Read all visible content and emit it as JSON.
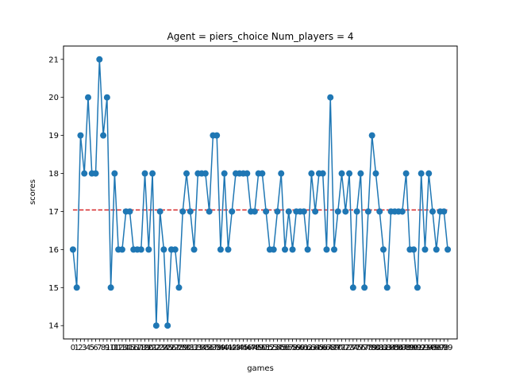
{
  "title": "Agent = piers_choice  Num_players = 4",
  "chart_data": {
    "type": "line",
    "title": "Agent = piers_choice  Num_players = 4",
    "xlabel": "games",
    "ylabel": "scores",
    "xlim": [
      -2.5,
      101.5
    ],
    "ylim": [
      13.65,
      21.35
    ],
    "x_ticks": [
      0,
      1,
      2,
      3,
      4,
      5,
      6,
      7,
      8,
      9,
      10,
      11,
      12,
      13,
      14,
      15,
      16,
      17,
      18,
      19,
      20,
      21,
      22,
      23,
      24,
      25,
      26,
      27,
      28,
      29,
      30,
      31,
      32,
      33,
      34,
      35,
      36,
      37,
      38,
      39,
      40,
      41,
      42,
      43,
      44,
      45,
      46,
      47,
      48,
      49,
      50,
      51,
      52,
      53,
      54,
      55,
      56,
      57,
      58,
      59,
      60,
      61,
      62,
      63,
      64,
      65,
      66,
      67,
      68,
      69,
      70,
      71,
      72,
      73,
      74,
      75,
      76,
      77,
      78,
      79,
      80,
      81,
      82,
      83,
      84,
      85,
      86,
      87,
      88,
      89,
      90,
      91,
      92,
      93,
      94,
      95,
      96,
      97,
      98,
      99
    ],
    "y_ticks": [
      14,
      15,
      16,
      17,
      18,
      19,
      20,
      21
    ],
    "grid": false,
    "series": [
      {
        "color": "#1f77b4",
        "marker": "circle",
        "values": [
          16,
          15,
          19,
          18,
          20,
          18,
          18,
          21,
          19,
          20,
          15,
          18,
          16,
          16,
          17,
          17,
          16,
          16,
          16,
          18,
          16,
          18,
          14,
          17,
          16,
          14,
          16,
          16,
          15,
          17,
          18,
          17,
          16,
          18,
          18,
          18,
          17,
          19,
          19,
          16,
          18,
          16,
          17,
          18,
          18,
          18,
          18,
          17,
          17,
          18,
          18,
          17,
          16,
          16,
          17,
          18,
          16,
          17,
          16,
          17,
          17,
          17,
          16,
          18,
          17,
          18,
          18,
          16,
          20,
          16,
          17,
          18,
          17,
          18,
          15,
          17,
          18,
          15,
          17,
          19,
          18,
          17,
          16,
          15,
          17,
          17,
          17,
          17,
          18,
          16,
          16,
          15,
          18,
          16,
          18,
          17,
          16,
          17,
          17,
          16
        ]
      }
    ],
    "reference_line": {
      "value": 17.04,
      "color": "#d62728",
      "style": "dashed"
    }
  }
}
